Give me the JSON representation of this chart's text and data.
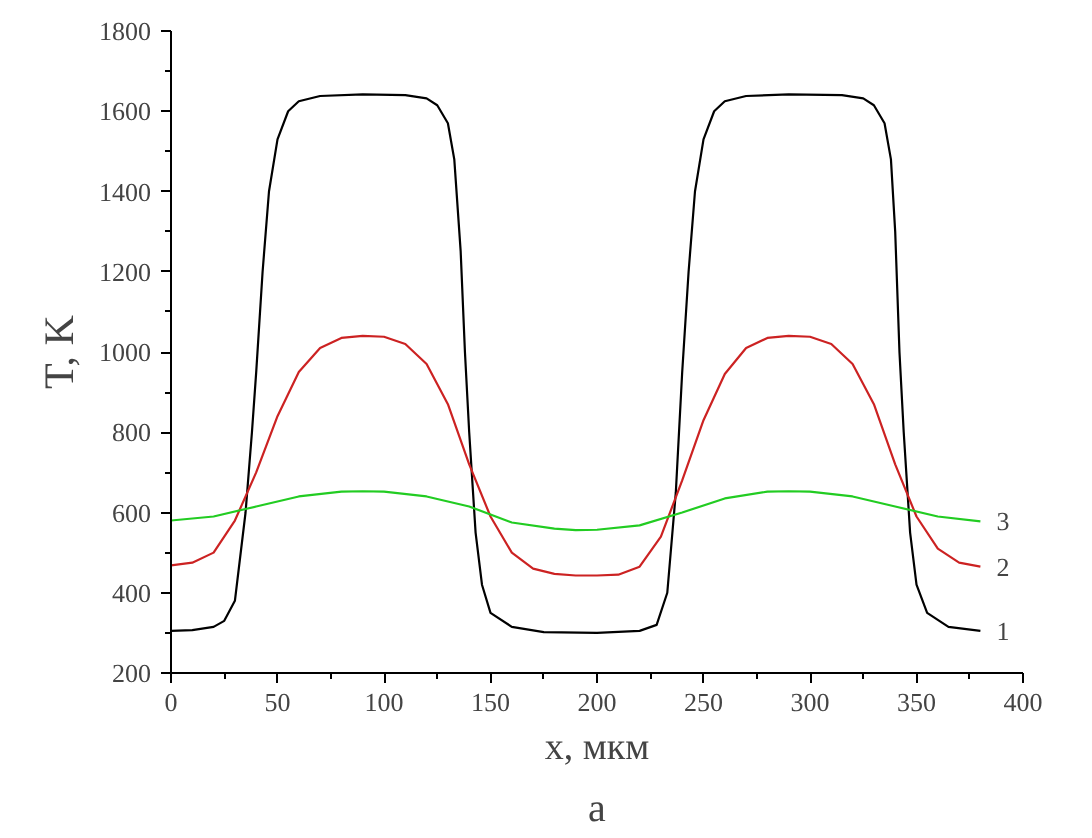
{
  "chart_data": {
    "type": "line",
    "xlabel": "x, мкм",
    "ylabel": "T, K",
    "annotations": [
      "a"
    ],
    "xlim": [
      0,
      400
    ],
    "ylim": [
      200,
      1800
    ],
    "xticks": [
      0,
      50,
      100,
      150,
      200,
      250,
      300,
      350,
      400
    ],
    "yticks": [
      200,
      400,
      600,
      800,
      1000,
      1200,
      1400,
      1600,
      1800
    ],
    "grid": false,
    "marker": "none",
    "line_style": "solid",
    "series": [
      {
        "name": "1",
        "color": "#000000",
        "x": [
          0,
          10,
          20,
          25,
          30,
          35,
          38,
          40,
          43,
          46,
          50,
          55,
          60,
          70,
          90,
          110,
          120,
          125,
          130,
          133,
          136,
          138,
          140,
          143,
          146,
          150,
          160,
          175,
          200,
          220,
          228,
          233,
          237,
          240,
          243,
          246,
          250,
          255,
          260,
          270,
          290,
          315,
          325,
          330,
          335,
          338,
          340,
          342,
          344,
          347,
          350,
          355,
          365,
          380
        ],
        "values": [
          305,
          307,
          315,
          330,
          380,
          600,
          800,
          950,
          1200,
          1400,
          1530,
          1600,
          1625,
          1638,
          1642,
          1640,
          1632,
          1615,
          1570,
          1480,
          1250,
          1000,
          800,
          550,
          420,
          350,
          315,
          302,
          300,
          305,
          320,
          400,
          650,
          950,
          1200,
          1400,
          1530,
          1600,
          1625,
          1638,
          1642,
          1640,
          1632,
          1615,
          1570,
          1480,
          1300,
          1000,
          800,
          550,
          420,
          350,
          315,
          305
        ]
      },
      {
        "name": "2",
        "color": "#cc2222",
        "x": [
          0,
          10,
          20,
          30,
          40,
          50,
          60,
          70,
          80,
          90,
          100,
          110,
          120,
          130,
          140,
          150,
          160,
          170,
          180,
          190,
          200,
          210,
          220,
          230,
          240,
          250,
          260,
          270,
          280,
          290,
          300,
          310,
          320,
          330,
          340,
          350,
          360,
          370,
          380
        ],
        "values": [
          468,
          475,
          500,
          580,
          700,
          840,
          950,
          1010,
          1035,
          1040,
          1038,
          1020,
          970,
          870,
          720,
          590,
          500,
          460,
          447,
          443,
          443,
          445,
          465,
          540,
          680,
          830,
          945,
          1010,
          1035,
          1040,
          1038,
          1020,
          970,
          870,
          720,
          590,
          510,
          475,
          465
        ]
      },
      {
        "name": "3",
        "color": "#22cc22",
        "x": [
          0,
          20,
          40,
          60,
          80,
          90,
          100,
          120,
          140,
          160,
          180,
          190,
          200,
          220,
          240,
          260,
          280,
          290,
          300,
          320,
          340,
          360,
          380
        ],
        "values": [
          580,
          590,
          615,
          640,
          652,
          653,
          652,
          640,
          615,
          575,
          560,
          556,
          557,
          568,
          600,
          635,
          652,
          653,
          652,
          640,
          615,
          590,
          578
        ]
      }
    ]
  }
}
